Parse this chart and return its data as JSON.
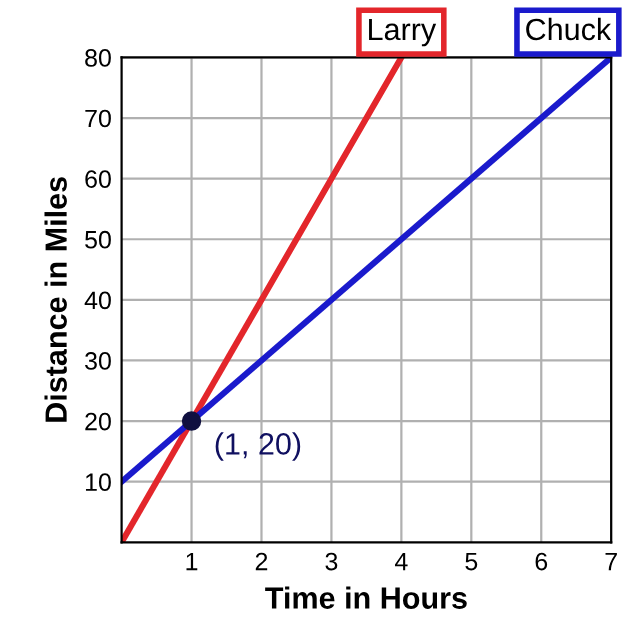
{
  "chart_data": {
    "type": "line",
    "xlabel": "Time in Hours",
    "ylabel": "Distance in Miles",
    "series": [
      {
        "name": "Larry",
        "color": "#e3262b",
        "x": [
          0,
          4
        ],
        "values": [
          0,
          80
        ]
      },
      {
        "name": "Chuck",
        "color": "#1a1acc",
        "x": [
          0,
          7
        ],
        "values": [
          10,
          80
        ]
      }
    ],
    "annotations": [
      {
        "text": "(1, 20)",
        "x": 1,
        "y": 20
      }
    ],
    "xlim": [
      0,
      7
    ],
    "ylim": [
      0,
      80
    ],
    "xticks": [
      1,
      2,
      3,
      4,
      5,
      6,
      7
    ],
    "yticks": [
      10,
      20,
      30,
      40,
      50,
      60,
      70,
      80
    ],
    "grid": true,
    "legend": false,
    "marker": "none",
    "line_style": "solid"
  }
}
